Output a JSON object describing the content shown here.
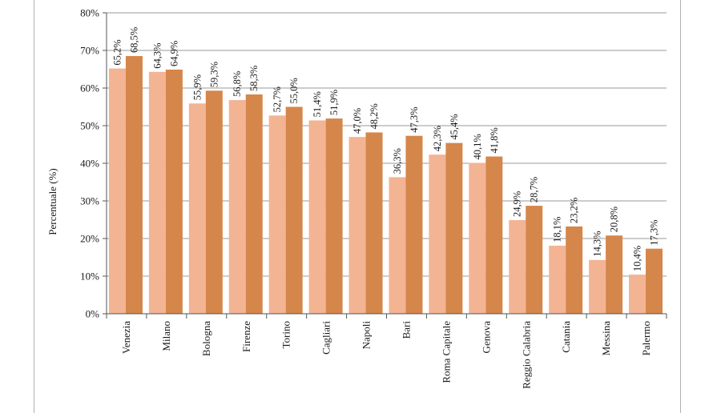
{
  "colors": {
    "series_light": "#f3b494",
    "series_dark": "#d5864a",
    "gridline": "#9a9a9a",
    "axis": "#555555"
  },
  "chart_data": {
    "type": "bar",
    "title": "",
    "xlabel": "",
    "ylabel": "Percentuale (%)",
    "ylim": [
      0,
      80
    ],
    "yticks": [
      "0%",
      "10%",
      "20%",
      "30%",
      "40%",
      "50%",
      "60%",
      "70%",
      "80%"
    ],
    "grid": true,
    "categories": [
      "Venezia",
      "Milano",
      "Bologna",
      "Firenze",
      "Torino",
      "Cagliari",
      "Napoli",
      "Bari",
      "Roma Capitale",
      "Genova",
      "Reggio Calabria",
      "Catania",
      "Messina",
      "Palermo"
    ],
    "series": [
      {
        "values": [
          65.2,
          64.3,
          55.9,
          56.8,
          52.7,
          51.4,
          47.0,
          36.3,
          42.3,
          40.1,
          24.9,
          18.1,
          14.3,
          10.4
        ],
        "labels": [
          "65,2%",
          "64,3%",
          "55,9%",
          "56,8%",
          "52,7%",
          "51,4%",
          "47,0%",
          "36,3%",
          "42,3%",
          "40,1%",
          "24,9%",
          "18,1%",
          "14,3%",
          "10,4%"
        ]
      },
      {
        "values": [
          68.5,
          64.9,
          59.3,
          58.3,
          55.0,
          51.9,
          48.2,
          47.3,
          45.4,
          41.8,
          28.7,
          23.2,
          20.8,
          17.3
        ],
        "labels": [
          "68,5%",
          "64,9%",
          "59,3%",
          "58,3%",
          "55,0%",
          "51,9%",
          "48,2%",
          "47,3%",
          "45,4%",
          "41,8%",
          "28,7%",
          "23,2%",
          "20,8%",
          "17,3%"
        ]
      }
    ]
  }
}
